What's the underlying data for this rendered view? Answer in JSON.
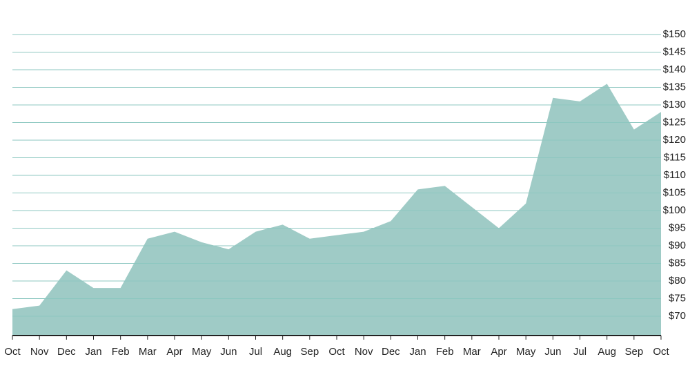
{
  "chart_data": {
    "type": "area",
    "categories": [
      "Oct",
      "Nov",
      "Dec",
      "Jan",
      "Feb",
      "Mar",
      "Apr",
      "May",
      "Jun",
      "Jul",
      "Aug",
      "Sep",
      "Oct",
      "Nov",
      "Dec",
      "Jan",
      "Feb",
      "Mar",
      "Apr",
      "May",
      "Jun",
      "Jul",
      "Aug",
      "Sep",
      "Oct"
    ],
    "values": [
      72,
      73,
      83,
      78,
      78,
      92,
      94,
      91,
      89,
      94,
      96,
      92,
      93,
      94,
      97,
      106,
      107,
      101,
      95,
      102,
      132,
      131,
      136,
      123,
      128
    ],
    "color": "#9fcbc6",
    "ylim": [
      64.5,
      150
    ],
    "yticks": [
      {
        "value": 70,
        "label": "$70"
      },
      {
        "value": 75,
        "label": "$75"
      },
      {
        "value": 80,
        "label": "$80"
      },
      {
        "value": 85,
        "label": "$85"
      },
      {
        "value": 90,
        "label": "$90"
      },
      {
        "value": 95,
        "label": "$95"
      },
      {
        "value": 100,
        "label": "$100"
      },
      {
        "value": 105,
        "label": "$105"
      },
      {
        "value": 110,
        "label": "$110"
      },
      {
        "value": 115,
        "label": "$115"
      },
      {
        "value": 120,
        "label": "$120"
      },
      {
        "value": 125,
        "label": "$125"
      },
      {
        "value": 130,
        "label": "$130"
      },
      {
        "value": 135,
        "label": "$135"
      },
      {
        "value": 140,
        "label": "$140"
      },
      {
        "value": 145,
        "label": "$145"
      },
      {
        "value": 150,
        "label": "$150"
      }
    ],
    "grid": true
  }
}
